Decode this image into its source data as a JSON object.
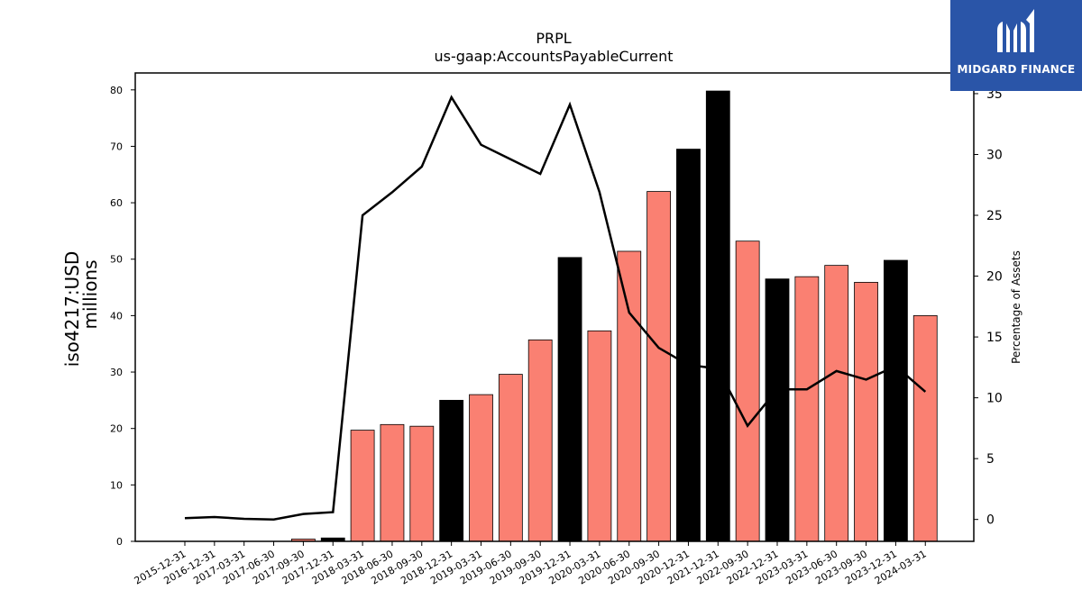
{
  "chart_data": {
    "type": "bar",
    "title": "PRPL",
    "subtitle": "us-gaap:AccountsPayableCurrent",
    "ylabel_line1": "iso4217:USD",
    "ylabel_line2": "millions",
    "y2label": "Percentage of Assets",
    "ylim": [
      0,
      83
    ],
    "y2lim": [
      -1.8,
      36.7
    ],
    "yticks": [
      0,
      10,
      20,
      30,
      40,
      50,
      60,
      70,
      80
    ],
    "y2ticks": [
      0,
      5,
      10,
      15,
      20,
      25,
      30,
      35
    ],
    "categories": [
      "2015-12-31",
      "2016-12-31",
      "2017-03-31",
      "2017-06-30",
      "2017-09-30",
      "2017-12-31",
      "2018-03-31",
      "2018-06-30",
      "2018-09-30",
      "2018-12-31",
      "2019-03-31",
      "2019-06-30",
      "2019-09-30",
      "2019-12-31",
      "2020-03-31",
      "2020-06-30",
      "2020-09-30",
      "2020-12-31",
      "2021-12-31",
      "2022-09-30",
      "2022-12-31",
      "2023-03-31",
      "2023-06-30",
      "2023-09-30",
      "2023-12-31",
      "2024-03-31"
    ],
    "series": [
      {
        "role": "bars",
        "values": [
          0,
          0,
          0,
          0,
          0.4,
          0.6,
          19.7,
          20.7,
          20.4,
          25.0,
          26.0,
          29.6,
          35.7,
          50.3,
          37.3,
          51.4,
          62.0,
          69.5,
          79.8,
          53.2,
          46.5,
          46.9,
          48.9,
          45.9,
          49.8,
          40.0
        ],
        "colors": [
          "#fa8072",
          "#fa8072",
          "#fa8072",
          "#fa8072",
          "#fa8072",
          "#000000",
          "#fa8072",
          "#fa8072",
          "#fa8072",
          "#000000",
          "#fa8072",
          "#fa8072",
          "#fa8072",
          "#000000",
          "#fa8072",
          "#fa8072",
          "#fa8072",
          "#000000",
          "#000000",
          "#fa8072",
          "#000000",
          "#fa8072",
          "#fa8072",
          "#fa8072",
          "#000000",
          "#fa8072"
        ]
      },
      {
        "role": "line",
        "axis": "right",
        "values": [
          0.1,
          0.2,
          0.05,
          0.0,
          0.45,
          0.6,
          25.0,
          26.9,
          29.0,
          34.7,
          30.8,
          29.6,
          28.4,
          34.1,
          26.9,
          17.0,
          14.1,
          12.7,
          12.4,
          7.7,
          10.7,
          10.7,
          12.2,
          11.5,
          12.6,
          10.5
        ],
        "color": "#000000"
      }
    ],
    "grid": false
  },
  "logo": {
    "text": "MIDGARD FINANCE",
    "color": "#2a55a8"
  }
}
